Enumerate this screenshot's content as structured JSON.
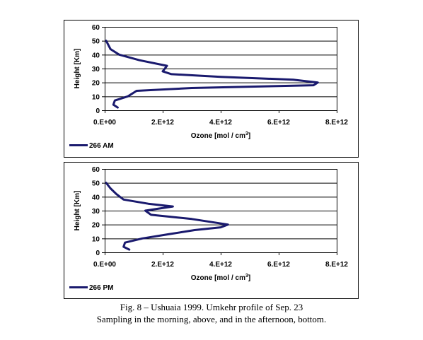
{
  "chart_data": [
    {
      "type": "line",
      "title": "",
      "xlabel": "Ozone [mol / cm",
      "xlabel_sup": "3",
      "xlabel_tail": "]",
      "ylabel": "Height  [Km]",
      "xlim": [
        0,
        8000000000000.0
      ],
      "ylim": [
        0,
        60
      ],
      "x_ticks": [
        0,
        2000000000000.0,
        4000000000000.0,
        6000000000000.0,
        8000000000000.0
      ],
      "x_tick_labels": [
        "0.E+00",
        "2.E+12",
        "4.E+12",
        "6.E+12",
        "8.E+12"
      ],
      "y_ticks": [
        0,
        10,
        20,
        30,
        40,
        50,
        60
      ],
      "y_tick_labels": [
        "0",
        "10",
        "20",
        "30",
        "40",
        "50",
        "60"
      ],
      "grid": true,
      "legend_position": "bottom-left",
      "series_color": "#1a1a6e",
      "series": [
        {
          "name": "266 AM",
          "points": [
            [
              450000000000.0,
              2
            ],
            [
              300000000000.0,
              4
            ],
            [
              350000000000.0,
              7
            ],
            [
              800000000000.0,
              10
            ],
            [
              1100000000000.0,
              14
            ],
            [
              3000000000000.0,
              16
            ],
            [
              7200000000000.0,
              18
            ],
            [
              7350000000000.0,
              20
            ],
            [
              6500000000000.0,
              22
            ],
            [
              4000000000000.0,
              24
            ],
            [
              2300000000000.0,
              26
            ],
            [
              2000000000000.0,
              28
            ],
            [
              2150000000000.0,
              32
            ],
            [
              1200000000000.0,
              36
            ],
            [
              500000000000.0,
              40
            ],
            [
              200000000000.0,
              44
            ],
            [
              100000000000.0,
              48
            ],
            [
              50000000000.0,
              50
            ]
          ]
        }
      ]
    },
    {
      "type": "line",
      "title": "",
      "xlabel": "Ozone [mol / cm",
      "xlabel_sup": "3",
      "xlabel_tail": "]",
      "ylabel": "Height  [Km]",
      "xlim": [
        0,
        8000000000000.0
      ],
      "ylim": [
        0,
        60
      ],
      "x_ticks": [
        0,
        2000000000000.0,
        4000000000000.0,
        6000000000000.0,
        8000000000000.0
      ],
      "x_tick_labels": [
        "0.E+00",
        "2.E+12",
        "4.E+12",
        "6.E+12",
        "8.E+12"
      ],
      "y_ticks": [
        0,
        10,
        20,
        30,
        40,
        50,
        60
      ],
      "y_tick_labels": [
        "0",
        "10",
        "20",
        "30",
        "40",
        "50",
        "60"
      ],
      "grid": true,
      "legend_position": "bottom-left",
      "series_color": "#1a1a6e",
      "series": [
        {
          "name": "266 PM",
          "points": [
            [
              850000000000.0,
              2
            ],
            [
              650000000000.0,
              4
            ],
            [
              700000000000.0,
              7
            ],
            [
              1300000000000.0,
              10
            ],
            [
              2200000000000.0,
              13
            ],
            [
              3100000000000.0,
              16
            ],
            [
              4000000000000.0,
              18
            ],
            [
              4250000000000.0,
              20
            ],
            [
              3000000000000.0,
              24
            ],
            [
              1600000000000.0,
              27
            ],
            [
              1400000000000.0,
              30
            ],
            [
              2350000000000.0,
              33
            ],
            [
              1500000000000.0,
              35
            ],
            [
              650000000000.0,
              38
            ],
            [
              400000000000.0,
              42
            ],
            [
              200000000000.0,
              46
            ],
            [
              50000000000.0,
              50
            ]
          ]
        }
      ]
    }
  ],
  "caption": {
    "line1": "Fig. 8 – Ushuaia 1999. Umkehr profile of  Sep. 23",
    "line2": "Sampling in the morning, above, and in the afternoon, bottom."
  }
}
